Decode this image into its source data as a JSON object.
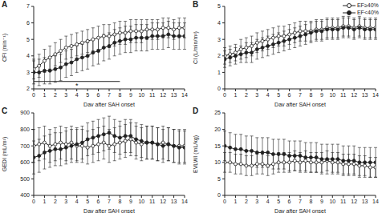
{
  "chart_data": [
    {
      "type": "line",
      "panel": "A",
      "x_label": "Day after SAH onset",
      "y_label": "CFI (min⁻¹)",
      "x": [
        0,
        0.5,
        1,
        1.5,
        2,
        2.5,
        3,
        3.5,
        4,
        4.5,
        5,
        5.5,
        6,
        6.5,
        7,
        7.5,
        8,
        8.5,
        9,
        9.5,
        10,
        10.5,
        11,
        11.5,
        12,
        12.5,
        13,
        13.5,
        14
      ],
      "xlim": [
        0,
        14
      ],
      "xticks": [
        0,
        1,
        2,
        3,
        4,
        5,
        6,
        7,
        8,
        9,
        10,
        11,
        12,
        13,
        14
      ],
      "ylim": [
        2,
        7
      ],
      "yticks": [
        2,
        3,
        4,
        5,
        6,
        7
      ],
      "series": [
        {
          "name": "EF≥40%",
          "color": "#222222",
          "marker": "open_circle",
          "values": [
            3.2,
            3.4,
            3.7,
            3.9,
            4.1,
            4.3,
            4.5,
            4.6,
            4.7,
            4.8,
            4.9,
            5.0,
            5.1,
            5.2,
            5.2,
            5.3,
            5.4,
            5.4,
            5.5,
            5.5,
            5.5,
            5.6,
            5.6,
            5.6,
            5.7,
            5.7,
            5.6,
            5.7,
            5.7
          ],
          "errors": [
            0.6,
            0.7,
            0.7,
            0.7,
            0.7,
            0.7,
            0.7,
            0.7,
            0.7,
            0.7,
            0.7,
            0.7,
            0.7,
            0.7,
            0.7,
            0.7,
            0.7,
            0.7,
            0.7,
            0.7,
            0.7,
            0.6,
            0.6,
            0.6,
            0.6,
            0.6,
            0.6,
            0.6,
            0.6
          ]
        },
        {
          "name": "EF<40%",
          "color": "#222222",
          "marker": "circle",
          "values": [
            3.0,
            3.0,
            3.1,
            3.1,
            3.2,
            3.3,
            3.5,
            3.6,
            3.8,
            3.9,
            4.0,
            4.2,
            4.3,
            4.5,
            4.6,
            4.8,
            4.9,
            5.0,
            5.0,
            5.1,
            5.1,
            5.1,
            5.2,
            5.2,
            5.2,
            5.3,
            5.2,
            5.2,
            5.2
          ],
          "errors": [
            0.7,
            0.8,
            0.8,
            0.8,
            0.8,
            0.8,
            0.8,
            0.8,
            0.8,
            0.8,
            0.8,
            0.8,
            0.8,
            0.8,
            0.8,
            0.8,
            0.8,
            0.8,
            0.8,
            0.8,
            0.8,
            0.8,
            0.8,
            0.8,
            0.8,
            0.8,
            0.8,
            0.8,
            0.8
          ]
        }
      ],
      "annotations": [
        {
          "text": "*",
          "x": 4,
          "y": 2.2,
          "arrow_x": [
            0,
            8
          ],
          "arrow_y": 2.45
        }
      ]
    },
    {
      "type": "line",
      "panel": "B",
      "x_label": "Day after SAH onset",
      "y_label": "CI (L/min/m²)",
      "x": [
        0,
        0.5,
        1,
        1.5,
        2,
        2.5,
        3,
        3.5,
        4,
        4.5,
        5,
        5.5,
        6,
        6.5,
        7,
        7.5,
        8,
        8.5,
        9,
        9.5,
        10,
        10.5,
        11,
        11.5,
        12,
        12.5,
        13,
        13.5,
        14
      ],
      "xlim": [
        0,
        14
      ],
      "xticks": [
        0,
        1,
        2,
        3,
        4,
        5,
        6,
        7,
        8,
        9,
        10,
        11,
        12,
        13,
        14
      ],
      "ylim": [
        0,
        5
      ],
      "yticks": [
        0,
        1,
        2,
        3,
        4,
        5
      ],
      "legend": "upper right",
      "series": [
        {
          "name": "EF≥40%",
          "color": "#222222",
          "marker": "open_circle",
          "values": [
            2.0,
            2.1,
            2.2,
            2.4,
            2.5,
            2.6,
            2.8,
            2.9,
            3.0,
            3.1,
            3.2,
            3.2,
            3.3,
            3.4,
            3.5,
            3.5,
            3.5,
            3.6,
            3.6,
            3.7,
            3.7,
            3.7,
            3.8,
            3.8,
            3.7,
            3.8,
            3.7,
            3.7,
            3.7
          ],
          "errors": [
            0.5,
            0.5,
            0.5,
            0.6,
            0.6,
            0.6,
            0.6,
            0.6,
            0.6,
            0.6,
            0.6,
            0.6,
            0.6,
            0.6,
            0.6,
            0.6,
            0.6,
            0.6,
            0.6,
            0.6,
            0.6,
            0.6,
            0.6,
            0.6,
            0.6,
            0.6,
            0.6,
            0.6,
            0.6
          ]
        },
        {
          "name": "EF<40%",
          "color": "#222222",
          "marker": "circle",
          "values": [
            1.8,
            1.9,
            2.0,
            2.1,
            2.2,
            2.2,
            2.4,
            2.5,
            2.6,
            2.7,
            2.8,
            2.9,
            3.0,
            3.1,
            3.2,
            3.3,
            3.4,
            3.5,
            3.5,
            3.6,
            3.6,
            3.6,
            3.7,
            3.7,
            3.6,
            3.7,
            3.6,
            3.6,
            3.6
          ],
          "errors": [
            0.5,
            0.5,
            0.5,
            0.5,
            0.6,
            0.6,
            0.6,
            0.6,
            0.6,
            0.6,
            0.6,
            0.6,
            0.6,
            0.6,
            0.6,
            0.6,
            0.6,
            0.6,
            0.6,
            0.6,
            0.6,
            0.6,
            0.6,
            0.6,
            0.6,
            0.6,
            0.6,
            0.6,
            0.6
          ]
        }
      ]
    },
    {
      "type": "line",
      "panel": "C",
      "x_label": "Day after SAH onset",
      "y_label": "GEDI (mL/m²)",
      "x": [
        0,
        0.5,
        1,
        1.5,
        2,
        2.5,
        3,
        3.5,
        4,
        4.5,
        5,
        5.5,
        6,
        6.5,
        7,
        7.5,
        8,
        8.5,
        9,
        9.5,
        10,
        10.5,
        11,
        11.5,
        12,
        12.5,
        13,
        13.5,
        14
      ],
      "xlim": [
        0,
        14
      ],
      "xticks": [
        0,
        1,
        2,
        3,
        4,
        5,
        6,
        7,
        8,
        9,
        10,
        11,
        12,
        13,
        14
      ],
      "ylim": [
        400,
        900
      ],
      "yticks": [
        400,
        500,
        600,
        700,
        800,
        900
      ],
      "series": [
        {
          "name": "EF≥40%",
          "color": "#222222",
          "marker": "open_circle",
          "values": [
            700,
            710,
            720,
            700,
            710,
            720,
            710,
            720,
            700,
            700,
            690,
            700,
            710,
            720,
            700,
            710,
            720,
            730,
            740,
            720,
            710,
            720,
            720,
            710,
            720,
            710,
            700,
            700,
            700
          ],
          "errors": [
            100,
            100,
            100,
            100,
            100,
            100,
            100,
            100,
            100,
            100,
            100,
            100,
            100,
            100,
            100,
            100,
            100,
            100,
            100,
            100,
            100,
            100,
            100,
            100,
            100,
            100,
            100,
            100,
            100
          ]
        },
        {
          "name": "EF<40%",
          "color": "#222222",
          "marker": "circle",
          "values": [
            630,
            640,
            660,
            670,
            680,
            680,
            690,
            700,
            710,
            720,
            740,
            750,
            760,
            770,
            780,
            760,
            750,
            760,
            760,
            740,
            730,
            720,
            720,
            710,
            700,
            710,
            700,
            690,
            690
          ],
          "errors": [
            100,
            100,
            100,
            100,
            100,
            100,
            100,
            100,
            100,
            100,
            100,
            100,
            100,
            100,
            100,
            100,
            100,
            100,
            100,
            100,
            100,
            100,
            100,
            100,
            100,
            100,
            100,
            100,
            100
          ]
        }
      ]
    },
    {
      "type": "line",
      "panel": "D",
      "x_label": "Day after SAH onset",
      "y_label": "EVLWI (mL/kg)",
      "x": [
        0,
        0.5,
        1,
        1.5,
        2,
        2.5,
        3,
        3.5,
        4,
        4.5,
        5,
        5.5,
        6,
        6.5,
        7,
        7.5,
        8,
        8.5,
        9,
        9.5,
        10,
        10.5,
        11,
        11.5,
        12,
        12.5,
        13,
        13.5,
        14
      ],
      "xlim": [
        0,
        14
      ],
      "xticks": [
        0,
        1,
        2,
        3,
        4,
        5,
        6,
        7,
        8,
        9,
        10,
        11,
        12,
        13,
        14
      ],
      "ylim": [
        0,
        25
      ],
      "yticks": [
        0,
        5,
        10,
        15,
        20,
        25
      ],
      "series": [
        {
          "name": "EF≥40%",
          "color": "#222222",
          "marker": "open_circle",
          "values": [
            10,
            10,
            9.5,
            9.5,
            9,
            9,
            9.5,
            9.5,
            9,
            9.5,
            10,
            10,
            10,
            10.5,
            10,
            10.5,
            10,
            10,
            10,
            10.5,
            10,
            10,
            9.5,
            9.5,
            9.5,
            9,
            9,
            8.5,
            8.5
          ],
          "errors": [
            3,
            3,
            3,
            3,
            3,
            3,
            3,
            3,
            3,
            3,
            3,
            3,
            3,
            3,
            3,
            3,
            3,
            3,
            3,
            3,
            3,
            3,
            3,
            3,
            3,
            3,
            3,
            3,
            3
          ]
        },
        {
          "name": "EF<40%",
          "color": "#222222",
          "marker": "circle",
          "values": [
            15,
            14.5,
            14,
            14,
            13.5,
            13.5,
            13,
            13,
            13,
            12.5,
            12.5,
            12.5,
            12,
            12,
            12,
            11.5,
            11.5,
            11.5,
            11,
            11,
            11,
            11,
            10.5,
            10.5,
            10.5,
            10,
            10,
            10,
            10
          ],
          "errors": [
            4.5,
            4.5,
            4.5,
            4.5,
            4.5,
            4.5,
            4.5,
            4.5,
            4.5,
            4.5,
            4.5,
            4.5,
            4.5,
            4.5,
            4.5,
            4.5,
            4.5,
            4.5,
            4.5,
            4.5,
            4.5,
            4.5,
            4.5,
            4.5,
            4.5,
            4.5,
            4.5,
            4.5,
            4.5
          ]
        }
      ]
    }
  ]
}
